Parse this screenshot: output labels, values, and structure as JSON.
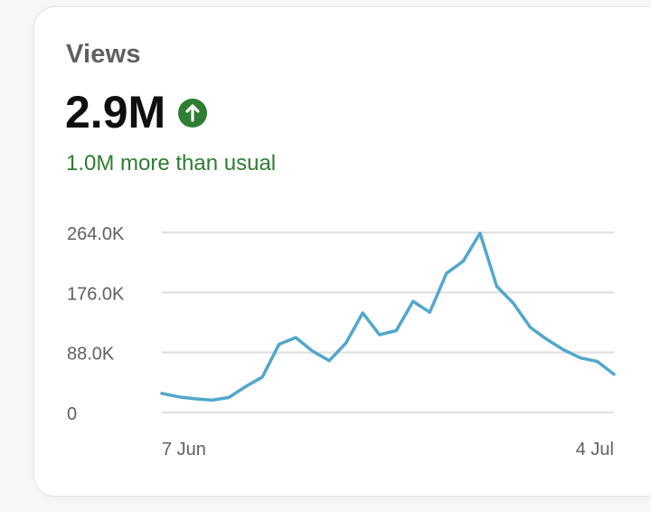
{
  "metric": {
    "label": "Views",
    "total": "2.9M",
    "trend_icon": "arrow-up-circle-icon",
    "comparison": "1.0M more than usual"
  },
  "colors": {
    "line": "#52a7cd",
    "trend_up": "#2e7d32",
    "grid": "#e3e3e3"
  },
  "chart_data": {
    "type": "line",
    "title": "",
    "xlabel": "",
    "ylabel": "",
    "ylim": [
      0,
      264000
    ],
    "y_ticks": [
      0,
      88000,
      176000,
      264000
    ],
    "y_tick_labels": [
      "0",
      "88.0K",
      "176.0K",
      "264.0K"
    ],
    "x_tick_labels": [
      "7 Jun",
      "4 Jul"
    ],
    "grid": true,
    "x": [
      "2024-06-07",
      "2024-06-08",
      "2024-06-09",
      "2024-06-10",
      "2024-06-11",
      "2024-06-12",
      "2024-06-13",
      "2024-06-14",
      "2024-06-15",
      "2024-06-16",
      "2024-06-17",
      "2024-06-18",
      "2024-06-19",
      "2024-06-20",
      "2024-06-21",
      "2024-06-22",
      "2024-06-23",
      "2024-06-24",
      "2024-06-25",
      "2024-06-26",
      "2024-06-27",
      "2024-06-28",
      "2024-06-29",
      "2024-06-30",
      "2024-07-01",
      "2024-07-02",
      "2024-07-03",
      "2024-07-04"
    ],
    "series": [
      {
        "values": [
          28000,
          23000,
          20000,
          18000,
          22000,
          38000,
          52000,
          100000,
          110000,
          90000,
          76000,
          102000,
          146000,
          114000,
          120000,
          163000,
          147000,
          204000,
          222000,
          263000,
          185000,
          160000,
          125000,
          107000,
          92000,
          80000,
          75000,
          56000
        ]
      }
    ]
  }
}
